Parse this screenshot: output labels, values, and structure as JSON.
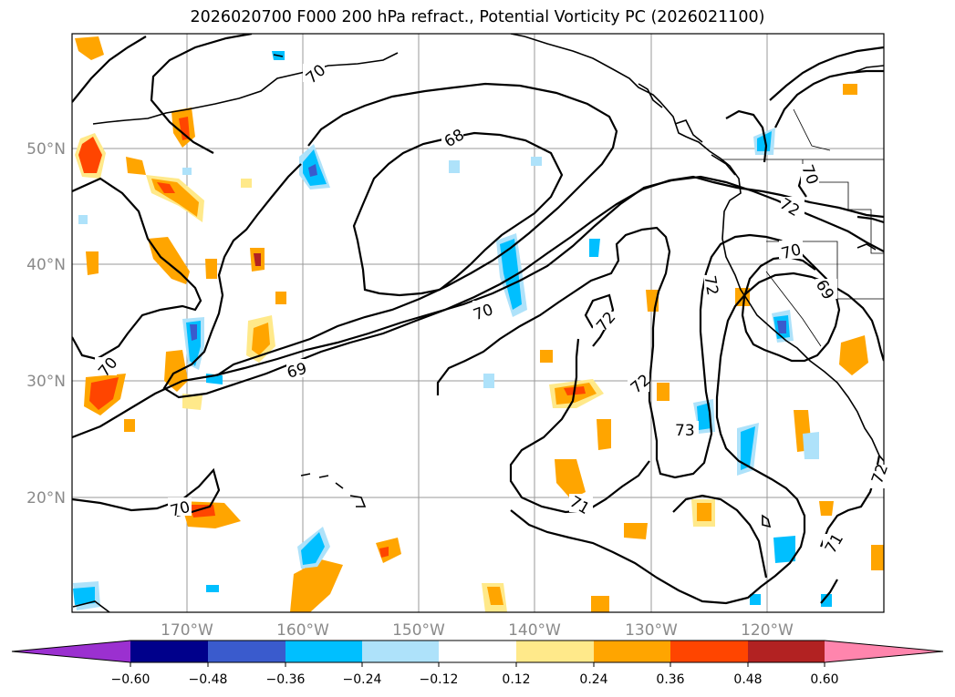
{
  "title": "2026020700 F000 200 hPa refract., Potential Vorticity PC (2026021100)",
  "lat_labels": [
    "50°N",
    "40°N",
    "30°N",
    "20°N"
  ],
  "lon_labels": [
    "170°W",
    "160°W",
    "150°W",
    "140°W",
    "130°W",
    "120°W"
  ],
  "contour_labels": [
    "70",
    "68",
    "70",
    "69",
    "70",
    "72",
    "72",
    "72",
    "70",
    "72",
    "69",
    "73",
    "71",
    "70",
    "71",
    "72",
    "70"
  ],
  "colorbar": {
    "ticks": [
      "−0.60",
      "−0.48",
      "−0.36",
      "−0.24",
      "−0.12",
      "0.12",
      "0.24",
      "0.36",
      "0.48",
      "0.60"
    ],
    "colors": [
      "#9b30d0",
      "#00008b",
      "#3a5bcd",
      "#00bfff",
      "#aee2fa",
      "#ffffff",
      "#ffe98a",
      "#ffa500",
      "#ff4500",
      "#b22222",
      "#ff85ad"
    ]
  }
}
